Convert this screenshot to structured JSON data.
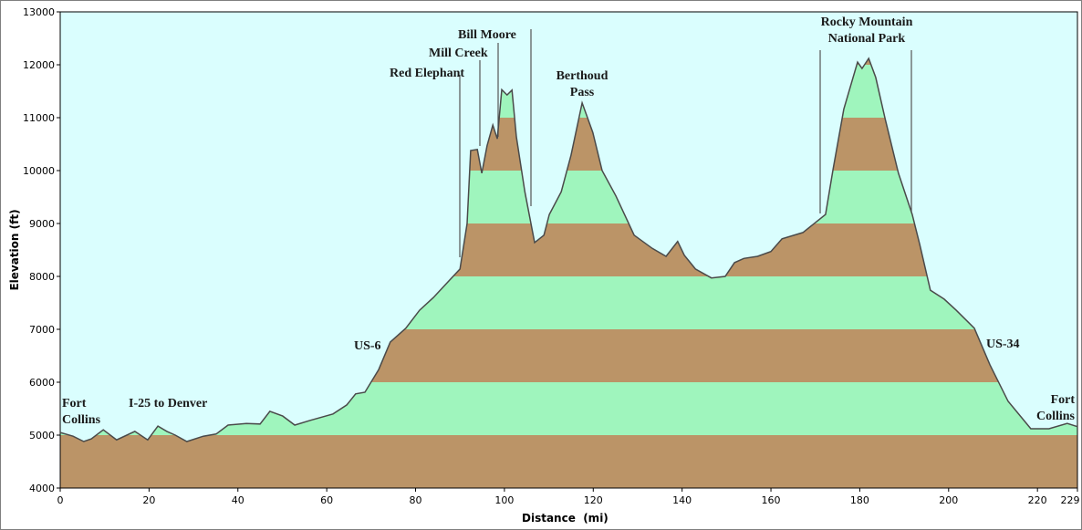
{
  "chart_data": {
    "type": "area",
    "xlabel": "Distance  (mi)",
    "ylabel": "Elevation (ft)",
    "x": [
      0,
      2.9,
      5.3,
      7,
      9.7,
      12.7,
      16.8,
      19.7,
      22,
      24,
      25.9,
      28.5,
      32.2,
      35.1,
      37.8,
      41.9,
      45,
      47.2,
      50.1,
      52.8,
      56.3,
      61.4,
      64.5,
      66.5,
      68.6,
      71.7,
      74.3,
      77.8,
      80.9,
      84,
      87.1,
      90,
      91.6,
      92.4,
      93.9,
      94.9,
      96.1,
      97.4,
      98.4,
      99.4,
      100.6,
      101.7,
      102.7,
      104.6,
      106.8,
      108.9,
      110.1,
      112.8,
      115,
      117.5,
      119.9,
      122,
      125.1,
      129.2,
      133.3,
      136.4,
      139,
      140.5,
      143,
      146.6,
      149.7,
      151.8,
      153.9,
      157,
      160,
      162.5,
      167.2,
      172.3,
      174,
      176.4,
      179.5,
      180.5,
      182,
      183.6,
      185.7,
      188.7,
      191.8,
      193.5,
      195.9,
      199,
      201.7,
      205.8,
      209.3,
      213.4,
      218.5,
      222.6,
      226.7,
      229
    ],
    "values": [
      5050,
      4980,
      4880,
      4930,
      5100,
      4910,
      5070,
      4910,
      5170,
      5070,
      5000,
      4880,
      4980,
      5020,
      5190,
      5220,
      5210,
      5450,
      5360,
      5190,
      5280,
      5400,
      5570,
      5780,
      5810,
      6240,
      6760,
      7020,
      7360,
      7600,
      7880,
      8140,
      9000,
      10380,
      10400,
      9950,
      10470,
      10860,
      10600,
      11530,
      11430,
      11520,
      10640,
      9600,
      8640,
      8780,
      9170,
      9600,
      10290,
      11280,
      10720,
      10000,
      9520,
      8780,
      8530,
      8380,
      8660,
      8400,
      8140,
      7970,
      8000,
      8260,
      8340,
      8380,
      8470,
      8710,
      8830,
      9170,
      10030,
      11160,
      12050,
      11930,
      12120,
      11760,
      10980,
      9950,
      9170,
      8600,
      7740,
      7570,
      7360,
      7020,
      6330,
      5640,
      5120,
      5120,
      5220,
      5160
    ],
    "xlim": [
      0,
      229
    ],
    "xticks": [
      0,
      20,
      40,
      60,
      80,
      100,
      120,
      140,
      160,
      180,
      200,
      220,
      229
    ],
    "ylim": [
      4000,
      13000
    ],
    "yticks": [
      4000,
      5000,
      6000,
      7000,
      8000,
      9000,
      10000,
      11000,
      12000,
      13000
    ],
    "band_colors": [
      "#bb9467",
      "#9ff5bd"
    ],
    "line_color": "#4a4a4a",
    "background": "#dafefe",
    "annotations": [
      [
        "Fort",
        "Collins"
      ],
      [
        "I-25 to Denver"
      ],
      [
        "US-6"
      ],
      [
        "Red Elephant"
      ],
      [
        "Mill Creek"
      ],
      [
        "Bill Moore"
      ],
      [
        "Berthoud",
        "Pass"
      ],
      [
        "Rocky Mountain",
        "National Park"
      ],
      [
        "US-34"
      ],
      [
        "Fort",
        "Collins"
      ]
    ]
  }
}
